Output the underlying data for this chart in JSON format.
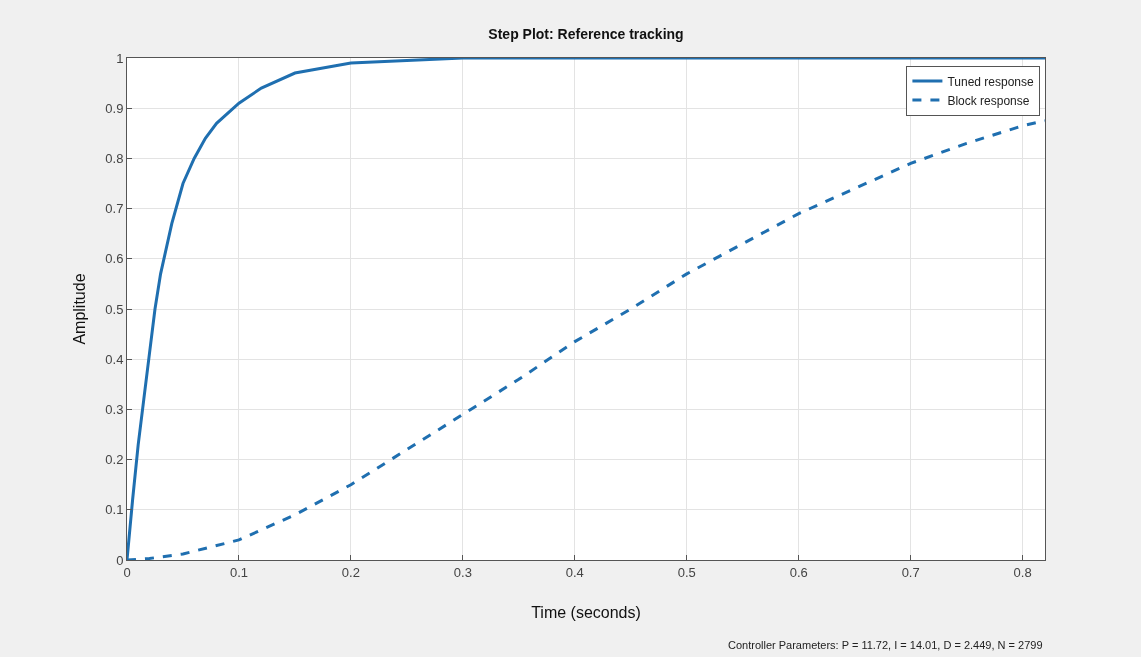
{
  "chart_data": {
    "type": "line",
    "title": "Step Plot: Reference tracking",
    "xlabel": "Time (seconds)",
    "ylabel": "Amplitude",
    "annotations": [
      "Controller Parameters: P = 11.72, I = 14.01, D = 2.449, N = 2799"
    ],
    "xlim": [
      0,
      0.82
    ],
    "xticks": [
      0,
      0.1,
      0.2,
      0.3,
      0.4,
      0.5,
      0.6,
      0.7,
      0.8
    ],
    "ylim": [
      0,
      1
    ],
    "yticks": [
      0,
      0.1,
      0.2,
      0.3,
      0.4,
      0.5,
      0.6,
      0.7,
      0.8,
      0.9,
      1
    ],
    "grid": true,
    "legend": "top right",
    "series": [
      {
        "name": "Tuned response",
        "color": "#1f6fb0",
        "line_style": "solid",
        "x": [
          0,
          0.005,
          0.01,
          0.015,
          0.02,
          0.025,
          0.03,
          0.04,
          0.05,
          0.06,
          0.07,
          0.08,
          0.1,
          0.12,
          0.15,
          0.2,
          0.25,
          0.3,
          0.4,
          0.5,
          0.6,
          0.7,
          0.82
        ],
        "values": [
          0,
          0.12,
          0.23,
          0.32,
          0.41,
          0.5,
          0.57,
          0.67,
          0.75,
          0.8,
          0.84,
          0.87,
          0.91,
          0.94,
          0.97,
          0.99,
          0.995,
          1,
          1,
          1,
          1,
          1,
          1
        ]
      },
      {
        "name": "Block response",
        "color": "#1f6fb0",
        "line_style": "dashed",
        "x": [
          0,
          0.02,
          0.05,
          0.1,
          0.15,
          0.2,
          0.25,
          0.3,
          0.35,
          0.4,
          0.45,
          0.5,
          0.55,
          0.6,
          0.65,
          0.7,
          0.75,
          0.8,
          0.82
        ],
        "values": [
          0,
          0.003,
          0.012,
          0.04,
          0.09,
          0.15,
          0.22,
          0.29,
          0.36,
          0.435,
          0.5,
          0.57,
          0.63,
          0.69,
          0.74,
          0.79,
          0.83,
          0.865,
          0.875
        ]
      }
    ]
  }
}
